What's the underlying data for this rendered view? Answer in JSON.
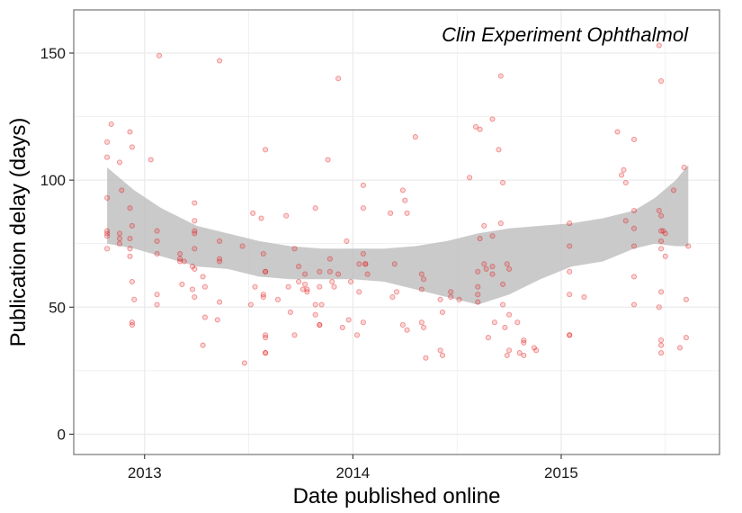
{
  "chart_data": {
    "type": "scatter",
    "title": "Clin Experiment Ophthalmol",
    "xlabel": "Date published online",
    "ylabel": "Publication delay (days)",
    "x_unit": "year",
    "xlim": [
      2012.66,
      2015.76
    ],
    "ylim": [
      -8,
      167
    ],
    "x_ticks": [
      2013,
      2014,
      2015
    ],
    "x_tick_labels": [
      "2013",
      "2014",
      "2015"
    ],
    "y_ticks": [
      0,
      50,
      100,
      150
    ],
    "y_tick_labels": [
      "0",
      "50",
      "100",
      "150"
    ],
    "grid": true,
    "legend": "none",
    "colors": {
      "points": "#e41a1c",
      "band": "#bdbdbd",
      "frame": "#7f7f7f",
      "grid": "#ebebeb"
    },
    "series": [
      {
        "kind": "points",
        "points": [
          [
            2012.82,
            115
          ],
          [
            2012.84,
            122
          ],
          [
            2012.82,
            109
          ],
          [
            2012.82,
            93
          ],
          [
            2012.82,
            80
          ],
          [
            2012.82,
            79
          ],
          [
            2012.82,
            78
          ],
          [
            2012.82,
            73
          ],
          [
            2012.88,
            107
          ],
          [
            2012.89,
            96
          ],
          [
            2012.88,
            79
          ],
          [
            2012.88,
            77
          ],
          [
            2012.88,
            75
          ],
          [
            2012.93,
            119
          ],
          [
            2012.94,
            113
          ],
          [
            2012.93,
            89
          ],
          [
            2012.94,
            82
          ],
          [
            2012.93,
            77
          ],
          [
            2012.93,
            73
          ],
          [
            2012.93,
            70
          ],
          [
            2012.94,
            60
          ],
          [
            2012.95,
            53
          ],
          [
            2012.94,
            44
          ],
          [
            2012.94,
            43
          ],
          [
            2013.03,
            108
          ],
          [
            2013.07,
            149
          ],
          [
            2013.06,
            80
          ],
          [
            2013.06,
            76
          ],
          [
            2013.06,
            71
          ],
          [
            2013.06,
            55
          ],
          [
            2013.06,
            51
          ],
          [
            2013.17,
            71
          ],
          [
            2013.17,
            69
          ],
          [
            2013.19,
            68
          ],
          [
            2013.17,
            68
          ],
          [
            2013.18,
            59
          ],
          [
            2013.24,
            91
          ],
          [
            2013.24,
            84
          ],
          [
            2013.24,
            80
          ],
          [
            2013.24,
            79
          ],
          [
            2013.24,
            73
          ],
          [
            2013.23,
            66
          ],
          [
            2013.24,
            65
          ],
          [
            2013.23,
            57
          ],
          [
            2013.24,
            54
          ],
          [
            2013.28,
            62
          ],
          [
            2013.29,
            58
          ],
          [
            2013.29,
            46
          ],
          [
            2013.28,
            35
          ],
          [
            2013.36,
            147
          ],
          [
            2013.36,
            76
          ],
          [
            2013.36,
            69
          ],
          [
            2013.36,
            68
          ],
          [
            2013.36,
            52
          ],
          [
            2013.35,
            45
          ],
          [
            2013.47,
            74
          ],
          [
            2013.48,
            28
          ],
          [
            2013.52,
            87
          ],
          [
            2013.53,
            58
          ],
          [
            2013.51,
            51
          ],
          [
            2013.56,
            85
          ],
          [
            2013.58,
            112
          ],
          [
            2013.57,
            71
          ],
          [
            2013.58,
            64
          ],
          [
            2013.58,
            64
          ],
          [
            2013.57,
            55
          ],
          [
            2013.57,
            54
          ],
          [
            2013.58,
            39
          ],
          [
            2013.58,
            38
          ],
          [
            2013.58,
            32
          ],
          [
            2013.58,
            32
          ],
          [
            2013.64,
            53
          ],
          [
            2013.68,
            86
          ],
          [
            2013.69,
            58
          ],
          [
            2013.7,
            48
          ],
          [
            2013.72,
            39
          ],
          [
            2013.72,
            73
          ],
          [
            2013.74,
            66
          ],
          [
            2013.74,
            60
          ],
          [
            2013.76,
            57
          ],
          [
            2013.77,
            59
          ],
          [
            2013.77,
            63
          ],
          [
            2013.78,
            57
          ],
          [
            2013.78,
            56
          ],
          [
            2013.82,
            89
          ],
          [
            2013.82,
            51
          ],
          [
            2013.82,
            47
          ],
          [
            2013.84,
            58
          ],
          [
            2013.84,
            64
          ],
          [
            2013.84,
            43
          ],
          [
            2013.84,
            43
          ],
          [
            2013.85,
            51
          ],
          [
            2013.88,
            108
          ],
          [
            2013.89,
            69
          ],
          [
            2013.89,
            64
          ],
          [
            2013.9,
            60
          ],
          [
            2013.91,
            58
          ],
          [
            2013.93,
            63
          ],
          [
            2013.93,
            140
          ],
          [
            2013.95,
            42
          ],
          [
            2013.97,
            76
          ],
          [
            2013.98,
            45
          ],
          [
            2013.99,
            60
          ],
          [
            2014.03,
            67
          ],
          [
            2014.03,
            56
          ],
          [
            2014.02,
            39
          ],
          [
            2014.05,
            98
          ],
          [
            2014.05,
            89
          ],
          [
            2014.05,
            71
          ],
          [
            2014.06,
            67
          ],
          [
            2014.06,
            67
          ],
          [
            2014.07,
            63
          ],
          [
            2014.05,
            44
          ],
          [
            2014.18,
            87
          ],
          [
            2014.19,
            54
          ],
          [
            2014.2,
            67
          ],
          [
            2014.21,
            56
          ],
          [
            2014.24,
            96
          ],
          [
            2014.25,
            92
          ],
          [
            2014.26,
            87
          ],
          [
            2014.24,
            43
          ],
          [
            2014.26,
            41
          ],
          [
            2014.3,
            117
          ],
          [
            2014.33,
            63
          ],
          [
            2014.33,
            57
          ],
          [
            2014.34,
            61
          ],
          [
            2014.33,
            44
          ],
          [
            2014.34,
            42
          ],
          [
            2014.35,
            30
          ],
          [
            2014.42,
            53
          ],
          [
            2014.43,
            48
          ],
          [
            2014.42,
            33
          ],
          [
            2014.43,
            31
          ],
          [
            2014.47,
            56
          ],
          [
            2014.47,
            54
          ],
          [
            2014.51,
            53
          ],
          [
            2014.56,
            101
          ],
          [
            2014.59,
            121
          ],
          [
            2014.61,
            120
          ],
          [
            2014.61,
            77
          ],
          [
            2014.6,
            64
          ],
          [
            2014.6,
            58
          ],
          [
            2014.6,
            55
          ],
          [
            2014.6,
            52
          ],
          [
            2014.63,
            82
          ],
          [
            2014.63,
            67
          ],
          [
            2014.64,
            65
          ],
          [
            2014.65,
            38
          ],
          [
            2014.67,
            124
          ],
          [
            2014.67,
            78
          ],
          [
            2014.67,
            66
          ],
          [
            2014.67,
            63
          ],
          [
            2014.68,
            44
          ],
          [
            2014.7,
            112
          ],
          [
            2014.71,
            141
          ],
          [
            2014.71,
            83
          ],
          [
            2014.72,
            99
          ],
          [
            2014.72,
            59
          ],
          [
            2014.72,
            51
          ],
          [
            2014.74,
            67
          ],
          [
            2014.75,
            65
          ],
          [
            2014.75,
            47
          ],
          [
            2014.73,
            42
          ],
          [
            2014.75,
            33
          ],
          [
            2014.74,
            31
          ],
          [
            2014.79,
            44
          ],
          [
            2014.8,
            32
          ],
          [
            2014.82,
            37
          ],
          [
            2014.82,
            36
          ],
          [
            2014.82,
            31
          ],
          [
            2014.87,
            34
          ],
          [
            2014.88,
            33
          ],
          [
            2015.04,
            83
          ],
          [
            2015.04,
            74
          ],
          [
            2015.04,
            64
          ],
          [
            2015.04,
            55
          ],
          [
            2015.04,
            39
          ],
          [
            2015.04,
            39
          ],
          [
            2015.11,
            54
          ],
          [
            2015.27,
            119
          ],
          [
            2015.29,
            102
          ],
          [
            2015.3,
            104
          ],
          [
            2015.31,
            99
          ],
          [
            2015.31,
            84
          ],
          [
            2015.35,
            116
          ],
          [
            2015.35,
            88
          ],
          [
            2015.35,
            81
          ],
          [
            2015.35,
            74
          ],
          [
            2015.35,
            62
          ],
          [
            2015.35,
            51
          ],
          [
            2015.47,
            153
          ],
          [
            2015.47,
            88
          ],
          [
            2015.48,
            76
          ],
          [
            2015.48,
            73
          ],
          [
            2015.47,
            50
          ],
          [
            2015.48,
            37
          ],
          [
            2015.48,
            35
          ],
          [
            2015.48,
            32
          ],
          [
            2015.48,
            139
          ],
          [
            2015.48,
            86
          ],
          [
            2015.48,
            80
          ],
          [
            2015.48,
            56
          ],
          [
            2015.49,
            80
          ],
          [
            2015.5,
            79
          ],
          [
            2015.5,
            70
          ],
          [
            2015.54,
            96
          ],
          [
            2015.57,
            34
          ],
          [
            2015.59,
            105
          ],
          [
            2015.6,
            38
          ],
          [
            2015.61,
            74
          ],
          [
            2015.6,
            53
          ]
        ]
      },
      {
        "kind": "confidence-band",
        "x": [
          2012.82,
          2012.95,
          2013.08,
          2013.25,
          2013.4,
          2013.55,
          2013.7,
          2013.85,
          2014.0,
          2014.15,
          2014.3,
          2014.45,
          2014.6,
          2014.75,
          2014.9,
          2015.05,
          2015.2,
          2015.35,
          2015.45,
          2015.55,
          2015.61
        ],
        "upper": [
          105,
          96,
          89,
          82,
          79,
          76,
          74,
          73,
          73,
          73,
          74,
          76,
          79,
          81,
          82,
          83,
          85,
          88,
          93,
          100,
          106
        ],
        "lower": [
          75,
          73,
          70,
          66,
          65,
          62,
          61,
          61,
          61,
          60,
          57,
          54,
          51,
          55,
          61,
          66,
          68,
          73,
          75,
          74,
          74
        ]
      }
    ]
  }
}
